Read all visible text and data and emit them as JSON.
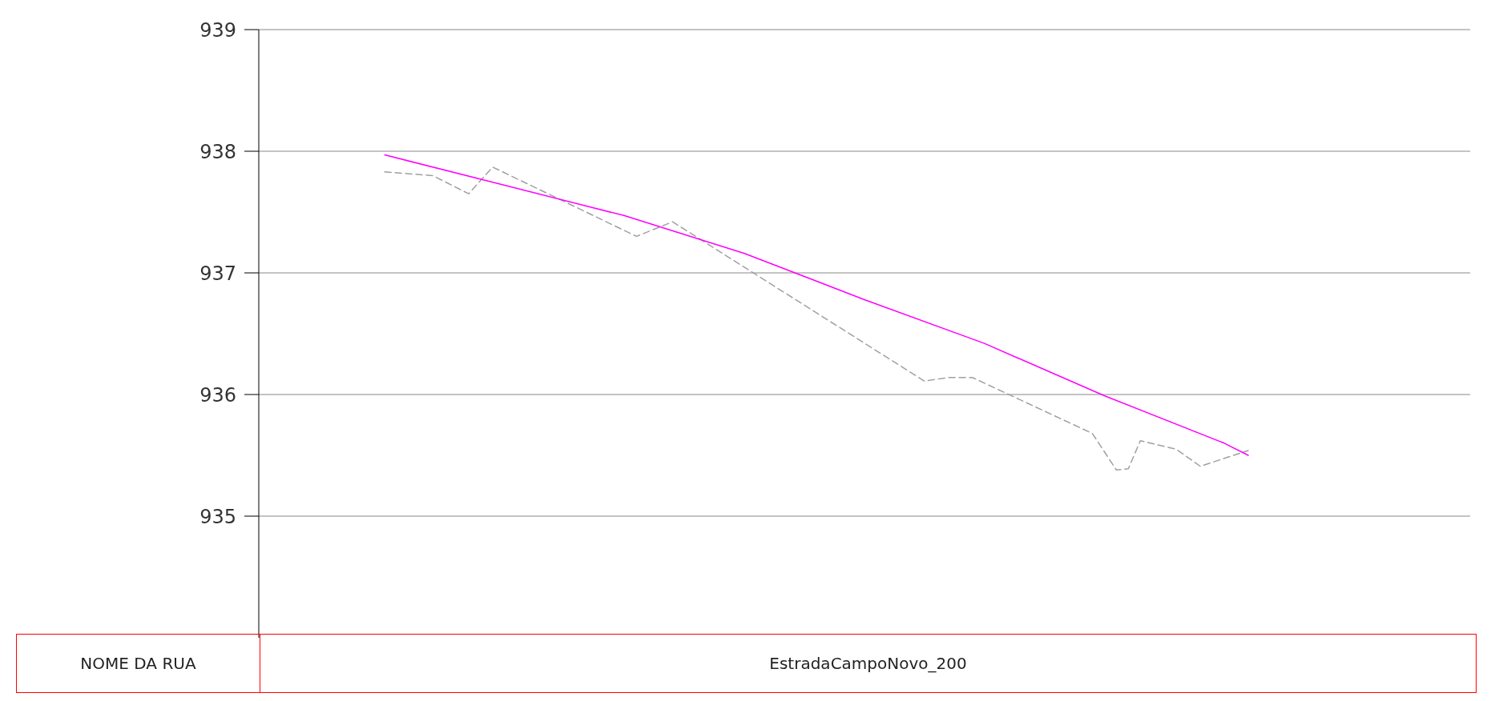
{
  "chart_data": {
    "type": "line",
    "categories": [
      null,
      null,
      null,
      null,
      null,
      null,
      null,
      null,
      null,
      null,
      null,
      null,
      null,
      null,
      null,
      null,
      null,
      null,
      null,
      null,
      null,
      null,
      null,
      null,
      null,
      null,
      null,
      null,
      null,
      null,
      null,
      null,
      null,
      null,
      null,
      null,
      null,
      null,
      null,
      null,
      null,
      null,
      null,
      null,
      null,
      null,
      null,
      null,
      null,
      null,
      null,
      null,
      null,
      null,
      null,
      null,
      null,
      null,
      null,
      null,
      null,
      null,
      null,
      null,
      null,
      null,
      null,
      null,
      null,
      null,
      null,
      null,
      null,
      null,
      null,
      null,
      null,
      null,
      null,
      null,
      null,
      null,
      null,
      null,
      null,
      null,
      null,
      null,
      null,
      null,
      null,
      null,
      null,
      null,
      null,
      null,
      null,
      null,
      null,
      null,
      null
    ],
    "ylim": [
      934,
      939
    ],
    "yticks": [
      935,
      936,
      937,
      938,
      939
    ],
    "tick_labels": "y",
    "grid": true,
    "series": [
      {
        "color": "#a0a0a0",
        "line_style": "dashed",
        "values": [
          null,
          null,
          null,
          null,
          null,
          null,
          null,
          null,
          null,
          null,
          937.83,
          null,
          null,
          null,
          937.8,
          null,
          null,
          937.65,
          null,
          937.87,
          null,
          null,
          null,
          null,
          null,
          null,
          null,
          null,
          null,
          null,
          null,
          937.3,
          null,
          null,
          937.42,
          null,
          null,
          null,
          null,
          null,
          null,
          null,
          null,
          null,
          null,
          null,
          null,
          null,
          null,
          null,
          null,
          null,
          null,
          null,
          null,
          936.11,
          null,
          936.14,
          null,
          936.14,
          null,
          null,
          null,
          null,
          null,
          null,
          null,
          null,
          null,
          935.68,
          null,
          935.38,
          935.39,
          935.62,
          null,
          null,
          935.55,
          null,
          935.41,
          null,
          null,
          null,
          935.54,
          null,
          null,
          null,
          null,
          null,
          null,
          null,
          null,
          null,
          null,
          null,
          null,
          null,
          null,
          null,
          null,
          null,
          null
        ]
      },
      {
        "color": "#ff00ff",
        "line_style": "solid",
        "values": [
          null,
          null,
          null,
          null,
          null,
          null,
          null,
          null,
          null,
          null,
          937.97,
          null,
          null,
          null,
          null,
          null,
          null,
          null,
          null,
          null,
          937.72,
          null,
          null,
          null,
          null,
          null,
          null,
          null,
          null,
          null,
          937.47,
          null,
          null,
          null,
          null,
          null,
          null,
          null,
          null,
          null,
          937.16,
          null,
          null,
          null,
          null,
          null,
          null,
          null,
          null,
          null,
          936.78,
          null,
          null,
          null,
          null,
          null,
          null,
          null,
          null,
          null,
          936.42,
          null,
          null,
          null,
          null,
          null,
          null,
          null,
          null,
          null,
          935.99,
          null,
          null,
          null,
          null,
          null,
          null,
          null,
          null,
          null,
          935.6,
          null,
          935.5,
          null,
          null,
          null,
          null,
          null,
          null,
          null,
          null,
          null,
          null,
          null,
          null,
          null,
          null,
          null,
          null,
          null,
          null
        ]
      }
    ],
    "annotations": [
      "NOME DA RUA",
      "EstradaCampoNovo_200"
    ]
  }
}
